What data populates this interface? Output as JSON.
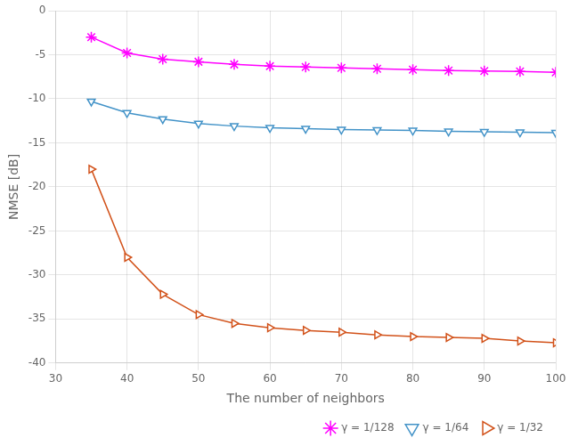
{
  "chart_data": {
    "type": "line",
    "xlabel": "The number of neighbors",
    "ylabel": "NMSE [dB]",
    "x": [
      35,
      40,
      45,
      50,
      55,
      60,
      65,
      70,
      75,
      80,
      85,
      90,
      95,
      100
    ],
    "series": [
      {
        "name": "γ = 1/128",
        "color": "#FF00FF",
        "marker": "star",
        "values": [
          -3.0,
          -4.8,
          -5.5,
          -5.8,
          -6.1,
          -6.3,
          -6.4,
          -6.5,
          -6.6,
          -6.7,
          -6.8,
          -6.85,
          -6.9,
          -7.0
        ]
      },
      {
        "name": "γ = 1/64",
        "color": "#4393C8",
        "marker": "triangle_down",
        "values": [
          -10.3,
          -11.6,
          -12.3,
          -12.8,
          -13.1,
          -13.3,
          -13.4,
          -13.5,
          -13.55,
          -13.6,
          -13.7,
          -13.75,
          -13.8,
          -13.85
        ]
      },
      {
        "name": "γ = 1/32",
        "color": "#D2521A",
        "marker": "triangle_right",
        "values": [
          -18.0,
          -28.0,
          -32.2,
          -34.5,
          -35.5,
          -36.0,
          -36.3,
          -36.5,
          -36.8,
          -37.0,
          -37.1,
          -37.2,
          -37.5,
          -37.7
        ]
      }
    ],
    "xlim": [
      30,
      100
    ],
    "ylim": [
      -40,
      0
    ],
    "xticks": [
      30,
      40,
      50,
      60,
      70,
      80,
      90,
      100
    ],
    "yticks": [
      0,
      -5,
      -10,
      -15,
      -20,
      -25,
      -30,
      -35,
      -40
    ],
    "grid": true,
    "legend": "bottom"
  }
}
